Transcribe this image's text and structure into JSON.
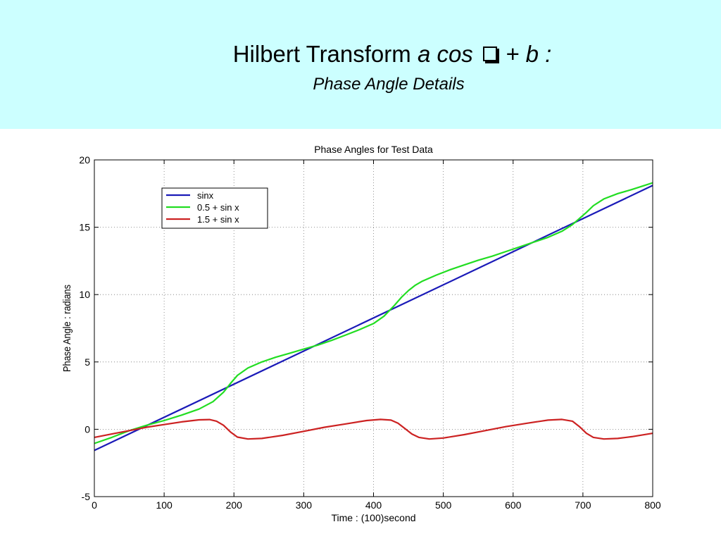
{
  "slide": {
    "title_main": "Hilbert Transform ",
    "title_expr_a": "a cos ",
    "title_expr_b": " + b ",
    "title_colon": ":",
    "subtitle": "Phase Angle Details"
  },
  "colors": {
    "banner": "#ccffff",
    "sinx": "#1a1ab8",
    "half": "#22dd22",
    "onehalf": "#cc2222"
  },
  "chart_data": {
    "type": "line",
    "title": "Phase Angles for Test Data",
    "xlabel": "Time : (100)second",
    "ylabel": "Phase Angle : radians",
    "xlim": [
      0,
      800
    ],
    "ylim": [
      -5,
      20
    ],
    "xticks": [
      0,
      100,
      200,
      300,
      400,
      500,
      600,
      700,
      800
    ],
    "yticks": [
      -5,
      0,
      5,
      10,
      15,
      20
    ],
    "grid": true,
    "legend_position": "top-left",
    "series": [
      {
        "name": "sinx",
        "color": "#1a1ab8",
        "x": [
          0,
          800
        ],
        "y": [
          -1.57,
          18.1
        ]
      },
      {
        "name": "0.5 + sin x",
        "color": "#22dd22",
        "x": [
          0,
          25,
          50,
          75,
          100,
          125,
          150,
          170,
          185,
          195,
          205,
          220,
          240,
          260,
          280,
          300,
          320,
          340,
          360,
          380,
          400,
          415,
          430,
          440,
          450,
          460,
          470,
          490,
          510,
          530,
          550,
          570,
          590,
          610,
          630,
          650,
          670,
          685,
          695,
          705,
          715,
          730,
          750,
          770,
          785,
          800
        ],
        "y": [
          -1.05,
          -0.6,
          -0.1,
          0.3,
          0.65,
          1.05,
          1.5,
          2.05,
          2.75,
          3.4,
          4.0,
          4.55,
          5.0,
          5.35,
          5.65,
          5.95,
          6.25,
          6.6,
          7.0,
          7.4,
          7.85,
          8.4,
          9.2,
          9.8,
          10.3,
          10.7,
          11.0,
          11.45,
          11.85,
          12.2,
          12.55,
          12.85,
          13.2,
          13.55,
          13.9,
          14.25,
          14.7,
          15.2,
          15.65,
          16.1,
          16.6,
          17.1,
          17.5,
          17.8,
          18.05,
          18.3
        ]
      },
      {
        "name": "1.5 + sin x",
        "color": "#cc2222",
        "x": [
          0,
          25,
          50,
          75,
          100,
          125,
          150,
          165,
          175,
          185,
          195,
          205,
          220,
          240,
          270,
          300,
          330,
          360,
          390,
          410,
          425,
          435,
          445,
          455,
          465,
          480,
          500,
          530,
          560,
          590,
          620,
          650,
          670,
          685,
          695,
          705,
          715,
          730,
          750,
          770,
          800
        ],
        "y": [
          -0.6,
          -0.35,
          -0.1,
          0.15,
          0.35,
          0.55,
          0.7,
          0.72,
          0.6,
          0.3,
          -0.2,
          -0.58,
          -0.72,
          -0.68,
          -0.45,
          -0.15,
          0.15,
          0.4,
          0.65,
          0.73,
          0.68,
          0.45,
          0.05,
          -0.35,
          -0.6,
          -0.72,
          -0.65,
          -0.4,
          -0.1,
          0.2,
          0.45,
          0.68,
          0.73,
          0.6,
          0.2,
          -0.3,
          -0.6,
          -0.72,
          -0.68,
          -0.55,
          -0.3
        ]
      }
    ]
  }
}
